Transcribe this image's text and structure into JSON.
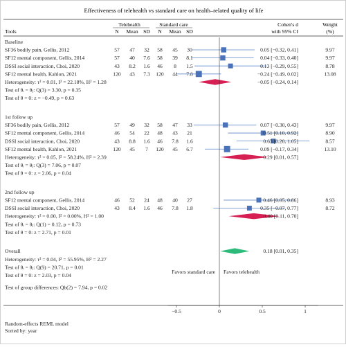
{
  "chart_data": {
    "type": "forest",
    "title": "Effectiveness of telehealth vs standard care on health–related quality of life",
    "header": {
      "tools": "Tools",
      "telehealth": "Telehealth",
      "standard_care": "Standard care",
      "n": "N",
      "mean": "Mean",
      "sd": "SD",
      "effect_top": "Cohen's d",
      "effect_bottom": "with 95% CI",
      "weight_top": "Weight",
      "weight_bottom": "(%)"
    },
    "groups": [
      {
        "name": "Baseline",
        "studies": [
          {
            "tool": "SF36 bodily pain, Gellis, 2012",
            "n1": "57",
            "m1": "47",
            "sd1": "32",
            "n2": "58",
            "m2": "45",
            "sd2": "30",
            "d": 0.05,
            "lo": -0.32,
            "hi": 0.41,
            "ci_text": "0.05 [−0.32, 0.41]",
            "weight": "9.97"
          },
          {
            "tool": "SF12 mental component, Gellis, 2014",
            "n1": "57",
            "m1": "40",
            "sd1": "7.6",
            "n2": "58",
            "m2": "39",
            "sd2": "8.1",
            "d": 0.04,
            "lo": -0.33,
            "hi": 0.4,
            "ci_text": "0.04 [−0.33, 0.40]",
            "weight": "9.97"
          },
          {
            "tool": "DSSI social interaction, Choi, 2020",
            "n1": "43",
            "m1": "8.2",
            "sd1": "1.6",
            "n2": "46",
            "m2": "8",
            "sd2": "1.5",
            "d": 0.13,
            "lo": -0.29,
            "hi": 0.55,
            "ci_text": "0.13 [−0.29, 0.55]",
            "weight": "8.78"
          },
          {
            "tool": "SF12 mental health, Kahlon, 2021",
            "n1": "120",
            "m1": "43",
            "sd1": "7.3",
            "n2": "120",
            "m2": "44",
            "sd2": "7.8",
            "d": -0.24,
            "lo": -0.49,
            "hi": 0.02,
            "ci_text": "−0.24 [−0.49, 0.02]",
            "weight": "13.08"
          }
        ],
        "summary": {
          "d": -0.05,
          "lo": -0.24,
          "hi": 0.14,
          "ci_text": "−0.05 [−0.24, 0.14]"
        },
        "stats": [
          "Heterogeneity: τ² = 0.01, I² = 22.18%, H² = 1.28",
          "Test of θᵢ = θⱼ: Q(3) = 3.30, p = 0.35",
          "Test of θ = 0: z = −0.49, p = 0.63"
        ]
      },
      {
        "name": "1st follow up",
        "studies": [
          {
            "tool": "SF36 bodily pain, Gellis, 2012",
            "n1": "57",
            "m1": "49",
            "sd1": "32",
            "n2": "58",
            "m2": "47",
            "sd2": "33",
            "d": 0.07,
            "lo": -0.3,
            "hi": 0.43,
            "ci_text": "0.07 [−0.30, 0.43]",
            "weight": "9.97"
          },
          {
            "tool": "SF12 mental component, Gellis, 2014",
            "n1": "46",
            "m1": "54",
            "sd1": "22",
            "n2": "48",
            "m2": "43",
            "sd2": "21",
            "d": 0.51,
            "lo": 0.1,
            "hi": 0.92,
            "ci_text": "0.51 [0.10, 0.92]",
            "weight": "8.90"
          },
          {
            "tool": "DSSI social interaction, Choi, 2020",
            "n1": "43",
            "m1": "8.8",
            "sd1": "1.6",
            "n2": "46",
            "m2": "7.8",
            "sd2": "1.6",
            "d": 0.63,
            "lo": 0.2,
            "hi": 1.05,
            "ci_text": "0.63 [0.20, 1.05]",
            "weight": "8.57"
          },
          {
            "tool": "SF12 mental health, Kahlon, 2021",
            "n1": "120",
            "m1": "45",
            "sd1": "7",
            "n2": "120",
            "m2": "45",
            "sd2": "6.7",
            "d": 0.09,
            "lo": -0.17,
            "hi": 0.34,
            "ci_text": "0.09 [−0.17, 0.34]",
            "weight": "13.10"
          }
        ],
        "summary": {
          "d": 0.29,
          "lo": 0.01,
          "hi": 0.57,
          "ci_text": "0.29 [0.01, 0.57]"
        },
        "stats": [
          "Heterogeneity: τ² = 0.05, I² = 58.24%, H² = 2.39",
          "Test of θᵢ = θⱼ: Q(3) = 7.06, p = 0.07",
          "Test of θ = 0: z = 2.06, p = 0.04"
        ]
      },
      {
        "name": "2nd follow up",
        "studies": [
          {
            "tool": "SF12 mental component, Gellis, 2014",
            "n1": "46",
            "m1": "52",
            "sd1": "24",
            "n2": "48",
            "m2": "40",
            "sd2": "27",
            "d": 0.46,
            "lo": 0.05,
            "hi": 0.86,
            "ci_text": "0.46 [0.05, 0.86]",
            "weight": "8.93"
          },
          {
            "tool": "DSSI social interaction, Choi, 2020",
            "n1": "43",
            "m1": "8.4",
            "sd1": "1.6",
            "n2": "46",
            "m2": "7.8",
            "sd2": "1.8",
            "d": 0.35,
            "lo": -0.07,
            "hi": 0.77,
            "ci_text": "0.35 [−0.07, 0.77]",
            "weight": "8.72"
          }
        ],
        "summary": {
          "d": 0.4,
          "lo": 0.11,
          "hi": 0.7,
          "ci_text": "0.40 [0.11, 0.70]"
        },
        "stats": [
          "Heterogeneity: τ² = 0.00, I² = 0.00%, H² = 1.00",
          "Test of θᵢ = θⱼ: Q(1) = 0.12, p = 0.73",
          "Test of θ = 0: z = 2.71, p = 0.01"
        ]
      }
    ],
    "overall": {
      "name": "Overall",
      "d": 0.18,
      "lo": 0.01,
      "hi": 0.35,
      "ci_text": "0.18 [0.01, 0.35]",
      "stats": [
        "Heterogeneity: τ² = 0.04, I² = 55.95%, H² = 2.27",
        "Test of θᵢ = θⱼ: Q(9) = 20.71, p = 0.01",
        "Test of θ = 0: z = 2.03, p = 0.04"
      ]
    },
    "group_test": "Test of group differences: Qb(2) = 7.94, p = 0.02",
    "favors_left": "Favors standard care",
    "favors_right": "Favors telehealth",
    "x_ticks": [
      -0.5,
      0,
      0.5,
      1
    ],
    "x_tick_labels": [
      "−0.5",
      "0",
      "0.5",
      "1"
    ],
    "xlim": [
      -0.6,
      1.15
    ],
    "footer": [
      "Random-effects REML model",
      "Sorted by: year"
    ],
    "colors": {
      "study_marker": "#4a72b8",
      "study_ci": "#5b86c9",
      "subgroup_diamond": "#d61f52",
      "overall_diamond": "#2dba7a",
      "text": "#222222",
      "rule": "#333333"
    }
  }
}
